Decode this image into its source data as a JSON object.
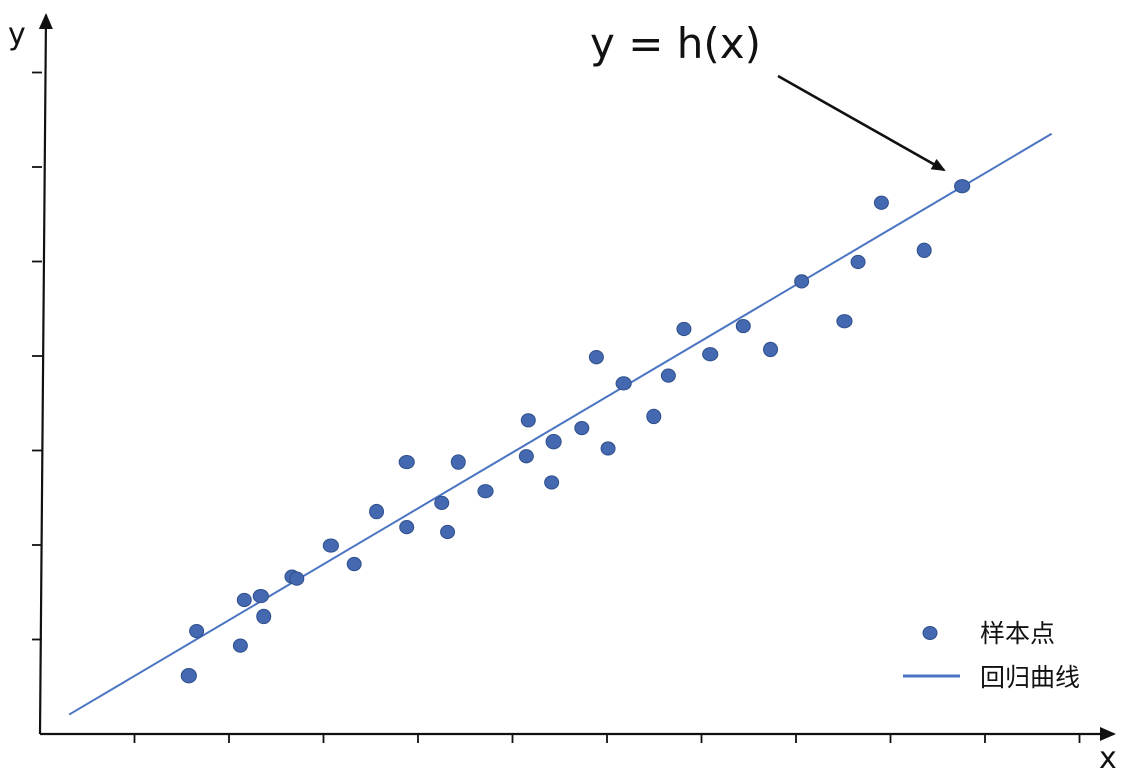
{
  "chart_data": {
    "type": "scatter",
    "annotation": "y = h(x)",
    "xlabel": "x",
    "ylabel": "y",
    "legend": {
      "placement": "bottom-right",
      "entries": [
        {
          "label": "样本点",
          "kind": "marker"
        },
        {
          "label": "回归曲线",
          "kind": "line"
        }
      ]
    },
    "series": [
      {
        "name": "样本点",
        "kind": "scatter",
        "color": "#4469b1",
        "points": [
          {
            "x": 1.53,
            "y": 0.6
          },
          {
            "x": 1.61,
            "y": 1.06
          },
          {
            "x": 2.06,
            "y": 0.91
          },
          {
            "x": 2.1,
            "y": 1.38
          },
          {
            "x": 2.27,
            "y": 1.42
          },
          {
            "x": 2.3,
            "y": 1.21
          },
          {
            "x": 2.59,
            "y": 1.62
          },
          {
            "x": 2.64,
            "y": 1.6
          },
          {
            "x": 2.99,
            "y": 1.94
          },
          {
            "x": 3.23,
            "y": 1.75
          },
          {
            "x": 3.46,
            "y": 2.29
          },
          {
            "x": 3.77,
            "y": 2.13
          },
          {
            "x": 3.77,
            "y": 2.8
          },
          {
            "x": 4.13,
            "y": 2.38
          },
          {
            "x": 4.19,
            "y": 2.08
          },
          {
            "x": 4.3,
            "y": 2.8
          },
          {
            "x": 4.58,
            "y": 2.5
          },
          {
            "x": 5.0,
            "y": 2.86
          },
          {
            "x": 5.02,
            "y": 3.23
          },
          {
            "x": 5.26,
            "y": 2.59
          },
          {
            "x": 5.28,
            "y": 3.01
          },
          {
            "x": 5.57,
            "y": 3.15
          },
          {
            "x": 5.72,
            "y": 3.88
          },
          {
            "x": 5.84,
            "y": 2.94
          },
          {
            "x": 6.0,
            "y": 3.61
          },
          {
            "x": 6.31,
            "y": 3.27
          },
          {
            "x": 6.46,
            "y": 3.69
          },
          {
            "x": 6.62,
            "y": 4.17
          },
          {
            "x": 6.89,
            "y": 3.91
          },
          {
            "x": 7.23,
            "y": 4.2
          },
          {
            "x": 7.51,
            "y": 3.96
          },
          {
            "x": 7.83,
            "y": 4.66
          },
          {
            "x": 8.27,
            "y": 4.25
          },
          {
            "x": 8.41,
            "y": 4.86
          },
          {
            "x": 8.65,
            "y": 5.47
          },
          {
            "x": 9.09,
            "y": 4.98
          },
          {
            "x": 9.48,
            "y": 5.64
          }
        ]
      },
      {
        "name": "回归曲线",
        "kind": "line",
        "color": "#4b74c2",
        "points": [
          {
            "x": 0.3,
            "y": 0.2
          },
          {
            "x": 10.4,
            "y": 6.18
          }
        ]
      }
    ],
    "grid": false,
    "xlim": [
      0,
      11
    ],
    "ylim": [
      0,
      7.3
    ]
  }
}
